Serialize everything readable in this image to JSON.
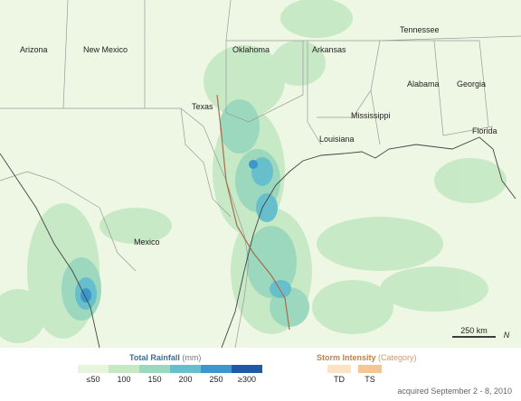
{
  "map": {
    "labels": {
      "arizona": "Arizona",
      "new_mexico": "New Mexico",
      "oklahoma": "Oklahoma",
      "arkansas": "Arkansas",
      "tennessee": "Tennessee",
      "texas": "Texas",
      "alabama": "Alabama",
      "georgia": "Georgia",
      "mississippi": "Mississippi",
      "louisiana": "Louisiana",
      "florida": "Florida",
      "mexico": "Mexico"
    },
    "scale": "250 km",
    "north": "N"
  },
  "legend": {
    "rainfall": {
      "title": "Total Rainfall",
      "unit": "(mm)",
      "items": [
        {
          "label": "≤50",
          "color": "#e7f5dc"
        },
        {
          "label": "100",
          "color": "#c6e9c4"
        },
        {
          "label": "150",
          "color": "#9bd8be"
        },
        {
          "label": "200",
          "color": "#67bfcb"
        },
        {
          "label": "250",
          "color": "#3b97cc"
        },
        {
          "label": "≥300",
          "color": "#1f5aa8"
        }
      ]
    },
    "storm": {
      "title": "Storm Intensity",
      "unit": "(Category)",
      "items": [
        {
          "label": "TD",
          "color": "#fbe3c4"
        },
        {
          "label": "TS",
          "color": "#f6c592"
        }
      ]
    }
  },
  "caption": "acquired September 2 - 8, 2010"
}
